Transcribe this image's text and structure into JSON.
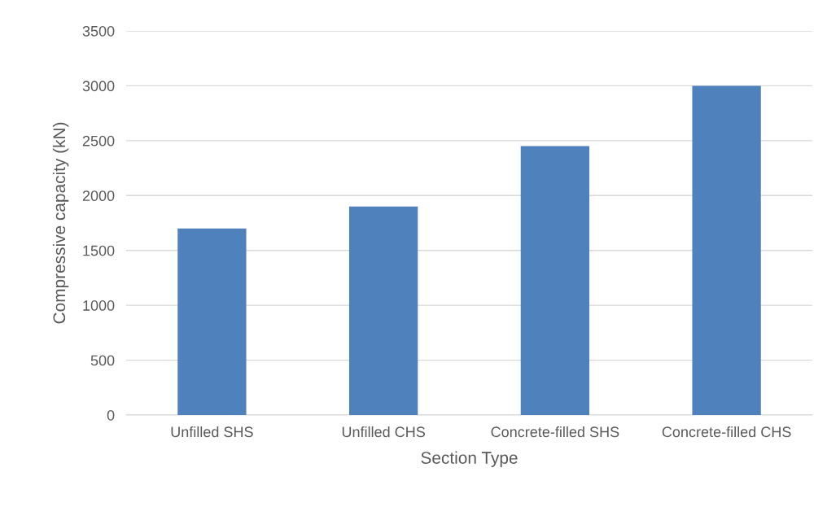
{
  "chart_data": {
    "type": "bar",
    "xlabel": "Section Type",
    "ylabel": "Compressive capacity (kN)",
    "categories": [
      "Unfilled SHS",
      "Unfilled CHS",
      "Concrete-filled SHS",
      "Concrete-filled CHS"
    ],
    "values": [
      1700,
      1900,
      2450,
      3000
    ],
    "color": "#4f81bd",
    "ylim": [
      0,
      3500
    ],
    "yticks": [
      0,
      500,
      1000,
      1500,
      2000,
      2500,
      3000,
      3500
    ],
    "grid": "y",
    "legend": false
  }
}
